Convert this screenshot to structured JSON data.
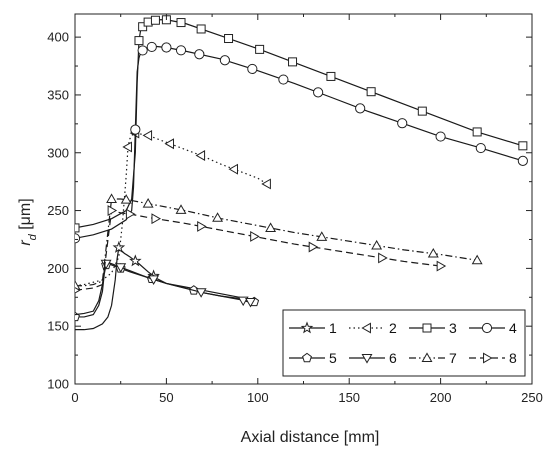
{
  "chart_data": {
    "type": "line",
    "xlabel": "Axial distance [mm]",
    "ylabel_main": "r",
    "ylabel_sub": "d",
    "ylabel_unit": " [μm]",
    "xlim": [
      0,
      250
    ],
    "ylim": [
      100,
      420
    ],
    "xticks": [
      "0",
      "50",
      "100",
      "150",
      "200",
      "250"
    ],
    "yticks": [
      "100",
      "150",
      "200",
      "250",
      "300",
      "350",
      "400"
    ],
    "xtick_values": [
      0,
      50,
      100,
      150,
      200,
      250
    ],
    "ytick_values": [
      100,
      150,
      200,
      250,
      300,
      350,
      400
    ],
    "grid": false,
    "legend_position": "bottom-right",
    "series": [
      {
        "name": "1",
        "marker": "star",
        "dash": "solid",
        "x": [
          0,
          5,
          10,
          15,
          18,
          20,
          22,
          23,
          24,
          25,
          27,
          30,
          35,
          40,
          45,
          50,
          60,
          70,
          80,
          90,
          95
        ],
        "y": [
          147,
          147,
          148,
          152,
          158,
          168,
          190,
          208,
          218,
          216,
          213,
          210,
          204,
          197,
          191,
          187,
          184,
          181,
          178,
          175,
          173
        ],
        "marker_x": [
          24,
          33,
          43
        ]
      },
      {
        "name": "2",
        "marker": "triangle-left",
        "dash": "dotted",
        "x": [
          0,
          5,
          10,
          15,
          20,
          24,
          26,
          28,
          29,
          30,
          31,
          33,
          40,
          50,
          60,
          70,
          80,
          90,
          100,
          105
        ],
        "y": [
          185,
          186,
          188,
          190,
          196,
          210,
          240,
          280,
          305,
          312,
          315,
          317,
          315,
          309,
          303,
          297,
          290,
          284,
          278,
          273
        ],
        "marker_x": [
          29,
          33,
          40,
          52,
          69,
          87,
          105
        ]
      },
      {
        "name": "3",
        "marker": "square",
        "dash": "solid",
        "x": [
          0,
          10,
          20,
          28,
          31,
          33,
          34,
          35,
          36,
          38,
          40,
          45,
          50,
          60,
          80,
          100,
          120,
          140,
          160,
          180,
          200,
          220,
          245
        ],
        "y": [
          235,
          238,
          243,
          250,
          260,
          300,
          360,
          397,
          407,
          411,
          413,
          415,
          415,
          412,
          401,
          390,
          378,
          366,
          354,
          342,
          330,
          318,
          306
        ],
        "marker_x": [
          0,
          35,
          37,
          40,
          44,
          50,
          58,
          69,
          84,
          101,
          119,
          140,
          162,
          190,
          220,
          245
        ]
      },
      {
        "name": "4",
        "marker": "circle",
        "dash": "solid",
        "x": [
          0,
          10,
          20,
          28,
          31,
          32,
          33,
          34,
          35,
          36,
          38,
          40,
          44,
          50,
          60,
          80,
          100,
          120,
          140,
          160,
          180,
          200,
          220,
          245
        ],
        "y": [
          226,
          229,
          234,
          242,
          250,
          270,
          320,
          370,
          382,
          387,
          390,
          391,
          392,
          391,
          388,
          381,
          371,
          360,
          348,
          336,
          325,
          314,
          305,
          293
        ],
        "marker_x": [
          0,
          33,
          37,
          42,
          50,
          58,
          68,
          82,
          97,
          114,
          133,
          156,
          179,
          200,
          222,
          245
        ]
      },
      {
        "name": "5",
        "marker": "pentagon",
        "dash": "solid",
        "x": [
          0,
          5,
          10,
          13,
          15,
          16,
          17,
          18,
          20,
          25,
          30,
          40,
          50,
          60,
          70,
          80,
          90,
          95,
          98
        ],
        "y": [
          158,
          158,
          160,
          168,
          180,
          195,
          203,
          204,
          203,
          200,
          197,
          192,
          187,
          183,
          179,
          176,
          174,
          172,
          171
        ],
        "marker_x": [
          0,
          17,
          25,
          42,
          65,
          98
        ]
      },
      {
        "name": "6",
        "marker": "triangle-down",
        "dash": "solid",
        "x": [
          0,
          5,
          10,
          13,
          15,
          16,
          17,
          18,
          20,
          25,
          30,
          40,
          50,
          60,
          70,
          80,
          90,
          95
        ],
        "y": [
          160,
          161,
          163,
          172,
          186,
          198,
          204,
          205,
          204,
          201,
          198,
          192,
          187,
          183,
          179,
          176,
          173,
          171
        ],
        "marker_x": [
          17,
          25,
          43,
          69,
          92,
          96
        ]
      },
      {
        "name": "7",
        "marker": "triangle-up",
        "dash": "dashdot",
        "x": [
          0,
          5,
          10,
          15,
          20,
          25,
          30,
          40,
          60,
          80,
          100,
          120,
          140,
          160,
          180,
          200,
          220
        ],
        "y": [
          185,
          185,
          186,
          189,
          260,
          260,
          259,
          256,
          250,
          243,
          237,
          231,
          226,
          221,
          216,
          212,
          207
        ],
        "marker_x": [
          0,
          20,
          28,
          40,
          58,
          78,
          107,
          135,
          165,
          196,
          220
        ]
      },
      {
        "name": "8",
        "marker": "triangle-right",
        "dash": "dashed",
        "x": [
          0,
          5,
          10,
          15,
          20,
          25,
          30,
          40,
          60,
          80,
          100,
          120,
          140,
          160,
          180,
          200
        ],
        "y": [
          181,
          182,
          183,
          186,
          250,
          248,
          247,
          244,
          239,
          233,
          227,
          221,
          216,
          211,
          206,
          202
        ],
        "marker_x": [
          0,
          20,
          30,
          44,
          69,
          98,
          130,
          168,
          200
        ]
      }
    ]
  }
}
